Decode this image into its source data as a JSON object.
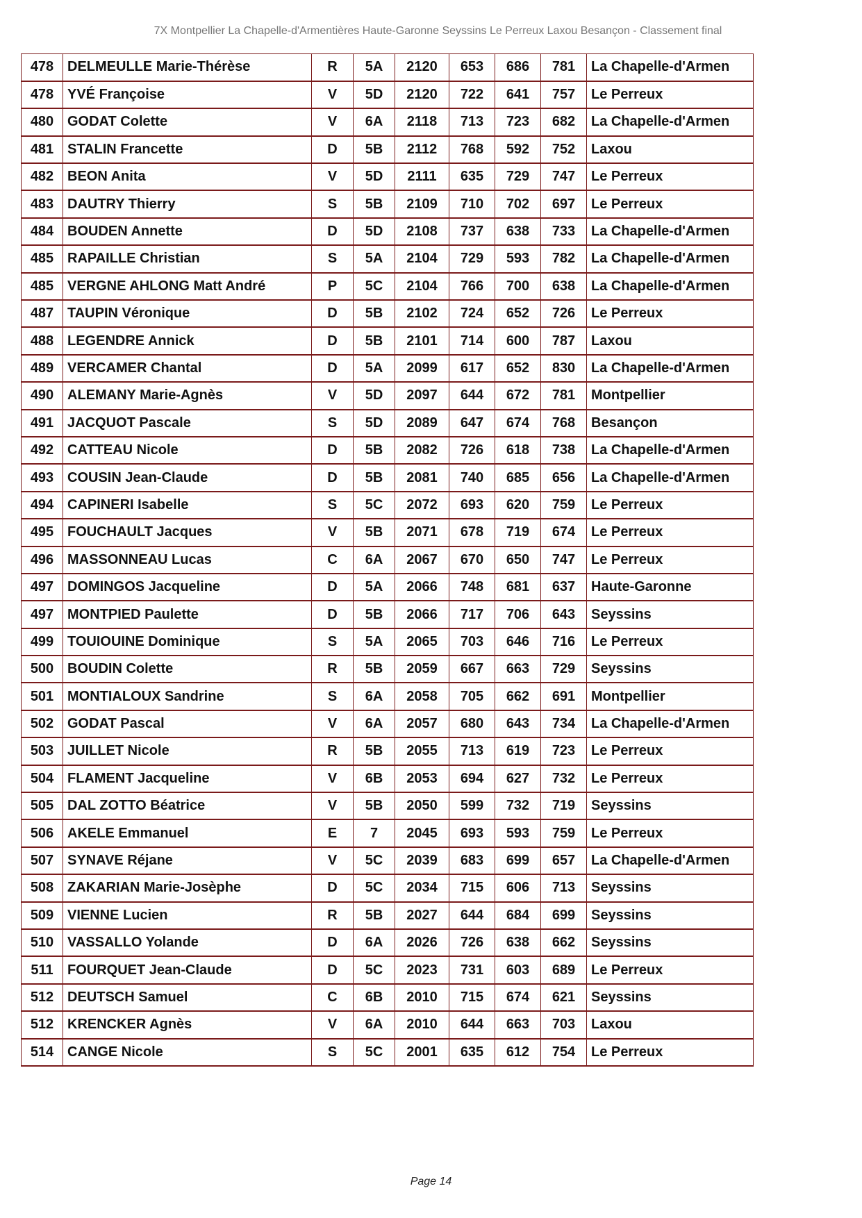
{
  "header": {
    "title": "7X Montpellier La Chapelle-d'Armentières Haute-Garonne Seyssins Le Perreux Laxou Besançon - Classement final"
  },
  "rows": [
    [
      "478",
      "DELMEULLE Marie-Thérèse",
      "R",
      "5A",
      "2120",
      "653",
      "686",
      "781",
      "La Chapelle-d'Armen"
    ],
    [
      "478",
      "YVÉ Françoise",
      "V",
      "5D",
      "2120",
      "722",
      "641",
      "757",
      "Le Perreux"
    ],
    [
      "480",
      "GODAT Colette",
      "V",
      "6A",
      "2118",
      "713",
      "723",
      "682",
      "La Chapelle-d'Armen"
    ],
    [
      "481",
      "STALIN Francette",
      "D",
      "5B",
      "2112",
      "768",
      "592",
      "752",
      "Laxou"
    ],
    [
      "482",
      "BEON Anita",
      "V",
      "5D",
      "2111",
      "635",
      "729",
      "747",
      "Le Perreux"
    ],
    [
      "483",
      "DAUTRY Thierry",
      "S",
      "5B",
      "2109",
      "710",
      "702",
      "697",
      "Le Perreux"
    ],
    [
      "484",
      "BOUDEN Annette",
      "D",
      "5D",
      "2108",
      "737",
      "638",
      "733",
      "La Chapelle-d'Armen"
    ],
    [
      "485",
      "RAPAILLE Christian",
      "S",
      "5A",
      "2104",
      "729",
      "593",
      "782",
      "La Chapelle-d'Armen"
    ],
    [
      "485",
      "VERGNE AHLONG Matt André",
      "P",
      "5C",
      "2104",
      "766",
      "700",
      "638",
      "La Chapelle-d'Armen"
    ],
    [
      "487",
      "TAUPIN Véronique",
      "D",
      "5B",
      "2102",
      "724",
      "652",
      "726",
      "Le Perreux"
    ],
    [
      "488",
      "LEGENDRE Annick",
      "D",
      "5B",
      "2101",
      "714",
      "600",
      "787",
      "Laxou"
    ],
    [
      "489",
      "VERCAMER Chantal",
      "D",
      "5A",
      "2099",
      "617",
      "652",
      "830",
      "La Chapelle-d'Armen"
    ],
    [
      "490",
      "ALEMANY Marie-Agnès",
      "V",
      "5D",
      "2097",
      "644",
      "672",
      "781",
      "Montpellier"
    ],
    [
      "491",
      "JACQUOT Pascale",
      "S",
      "5D",
      "2089",
      "647",
      "674",
      "768",
      "Besançon"
    ],
    [
      "492",
      "CATTEAU Nicole",
      "D",
      "5B",
      "2082",
      "726",
      "618",
      "738",
      "La Chapelle-d'Armen"
    ],
    [
      "493",
      "COUSIN Jean-Claude",
      "D",
      "5B",
      "2081",
      "740",
      "685",
      "656",
      "La Chapelle-d'Armen"
    ],
    [
      "494",
      "CAPINERI Isabelle",
      "S",
      "5C",
      "2072",
      "693",
      "620",
      "759",
      "Le Perreux"
    ],
    [
      "495",
      "FOUCHAULT Jacques",
      "V",
      "5B",
      "2071",
      "678",
      "719",
      "674",
      "Le Perreux"
    ],
    [
      "496",
      "MASSONNEAU Lucas",
      "C",
      "6A",
      "2067",
      "670",
      "650",
      "747",
      "Le Perreux"
    ],
    [
      "497",
      "DOMINGOS Jacqueline",
      "D",
      "5A",
      "2066",
      "748",
      "681",
      "637",
      "Haute-Garonne"
    ],
    [
      "497",
      "MONTPIED Paulette",
      "D",
      "5B",
      "2066",
      "717",
      "706",
      "643",
      "Seyssins"
    ],
    [
      "499",
      "TOUIOUINE Dominique",
      "S",
      "5A",
      "2065",
      "703",
      "646",
      "716",
      "Le Perreux"
    ],
    [
      "500",
      "BOUDIN Colette",
      "R",
      "5B",
      "2059",
      "667",
      "663",
      "729",
      "Seyssins"
    ],
    [
      "501",
      "MONTIALOUX Sandrine",
      "S",
      "6A",
      "2058",
      "705",
      "662",
      "691",
      "Montpellier"
    ],
    [
      "502",
      "GODAT Pascal",
      "V",
      "6A",
      "2057",
      "680",
      "643",
      "734",
      "La Chapelle-d'Armen"
    ],
    [
      "503",
      "JUILLET Nicole",
      "R",
      "5B",
      "2055",
      "713",
      "619",
      "723",
      "Le Perreux"
    ],
    [
      "504",
      "FLAMENT Jacqueline",
      "V",
      "6B",
      "2053",
      "694",
      "627",
      "732",
      "Le Perreux"
    ],
    [
      "505",
      "DAL ZOTTO Béatrice",
      "V",
      "5B",
      "2050",
      "599",
      "732",
      "719",
      "Seyssins"
    ],
    [
      "506",
      "AKELE Emmanuel",
      "E",
      "7",
      "2045",
      "693",
      "593",
      "759",
      "Le Perreux"
    ],
    [
      "507",
      "SYNAVE Réjane",
      "V",
      "5C",
      "2039",
      "683",
      "699",
      "657",
      "La Chapelle-d'Armen"
    ],
    [
      "508",
      "ZAKARIAN Marie-Josèphe",
      "D",
      "5C",
      "2034",
      "715",
      "606",
      "713",
      "Seyssins"
    ],
    [
      "509",
      "VIENNE Lucien",
      "R",
      "5B",
      "2027",
      "644",
      "684",
      "699",
      "Seyssins"
    ],
    [
      "510",
      "VASSALLO Yolande",
      "D",
      "6A",
      "2026",
      "726",
      "638",
      "662",
      "Seyssins"
    ],
    [
      "511",
      "FOURQUET Jean-Claude",
      "D",
      "5C",
      "2023",
      "731",
      "603",
      "689",
      "Le Perreux"
    ],
    [
      "512",
      "DEUTSCH Samuel",
      "C",
      "6B",
      "2010",
      "715",
      "674",
      "621",
      "Seyssins"
    ],
    [
      "512",
      "KRENCKER Agnès",
      "V",
      "6A",
      "2010",
      "644",
      "663",
      "703",
      "Laxou"
    ],
    [
      "514",
      "CANGE Nicole",
      "S",
      "5C",
      "2001",
      "635",
      "612",
      "754",
      "Le Perreux"
    ]
  ],
  "footer": {
    "page": "Page 14"
  },
  "colors": {
    "border": "#7a1a1a",
    "header_text": "#777777"
  }
}
